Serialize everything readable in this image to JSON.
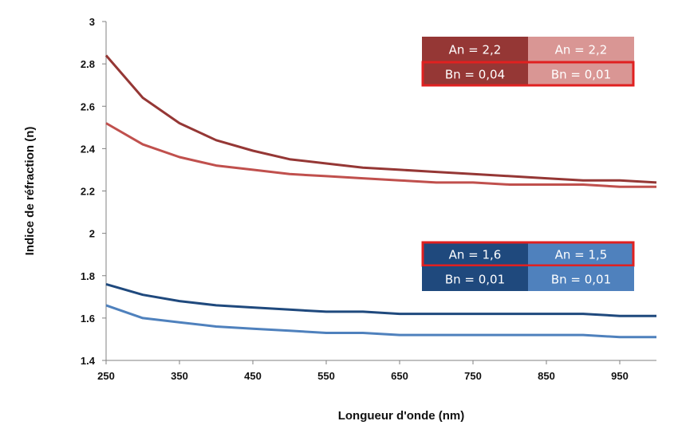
{
  "chart_data": {
    "type": "line",
    "xlabel": "Longueur d'onde (nm)",
    "ylabel": "Indice de réfraction (n)",
    "xlim": [
      250,
      1000
    ],
    "ylim": [
      1.4,
      3.0
    ],
    "xticks": [
      250,
      350,
      450,
      550,
      650,
      750,
      850,
      950
    ],
    "xtick_labels": [
      "250",
      "350",
      "450",
      "550",
      "650",
      "750",
      "850",
      "950"
    ],
    "yticks": [
      1.4,
      1.6,
      1.8,
      2.0,
      2.2,
      2.4,
      2.6,
      2.8,
      3.0
    ],
    "ytick_labels": [
      "1.4",
      "1.6",
      "1.8",
      "2",
      "2.2",
      "2.4",
      "2.6",
      "2.8",
      "3"
    ],
    "grid": false,
    "x": [
      250,
      300,
      350,
      400,
      450,
      500,
      550,
      600,
      650,
      700,
      750,
      800,
      850,
      900,
      950,
      1000
    ],
    "series": [
      {
        "color": "#953735",
        "values": [
          2.84,
          2.64,
          2.52,
          2.44,
          2.39,
          2.35,
          2.33,
          2.31,
          2.3,
          2.29,
          2.28,
          2.27,
          2.26,
          2.25,
          2.25,
          2.24
        ]
      },
      {
        "color": "#c0504d",
        "values": [
          2.52,
          2.42,
          2.36,
          2.32,
          2.3,
          2.28,
          2.27,
          2.26,
          2.25,
          2.24,
          2.24,
          2.23,
          2.23,
          2.23,
          2.22,
          2.22
        ]
      },
      {
        "color": "#1f497d",
        "values": [
          1.76,
          1.71,
          1.68,
          1.66,
          1.65,
          1.64,
          1.63,
          1.63,
          1.62,
          1.62,
          1.62,
          1.62,
          1.62,
          1.62,
          1.61,
          1.61
        ]
      },
      {
        "color": "#4f81bd",
        "values": [
          1.66,
          1.6,
          1.58,
          1.56,
          1.55,
          1.54,
          1.53,
          1.53,
          1.52,
          1.52,
          1.52,
          1.52,
          1.52,
          1.52,
          1.51,
          1.51
        ]
      }
    ],
    "legend_tables": [
      {
        "position": "top-right",
        "rows": [
          {
            "cells": [
              {
                "text": "An = 2,2",
                "bg": "#953735"
              },
              {
                "text": "An = 2,2",
                "bg": "#d99694"
              }
            ],
            "highlighted": false
          },
          {
            "cells": [
              {
                "text": "Bn = 0,04",
                "bg": "#953735"
              },
              {
                "text": "Bn = 0,01",
                "bg": "#d99694"
              }
            ],
            "highlighted": true
          }
        ]
      },
      {
        "position": "center-right",
        "rows": [
          {
            "cells": [
              {
                "text": "An = 1,6",
                "bg": "#1f497d"
              },
              {
                "text": "An = 1,5",
                "bg": "#4f81bd"
              }
            ],
            "highlighted": true
          },
          {
            "cells": [
              {
                "text": "Bn = 0,01",
                "bg": "#1f497d"
              },
              {
                "text": "Bn = 0,01",
                "bg": "#4f81bd"
              }
            ],
            "highlighted": false
          }
        ]
      }
    ],
    "highlight_color": "#e02020",
    "axis_color": "#808080"
  }
}
